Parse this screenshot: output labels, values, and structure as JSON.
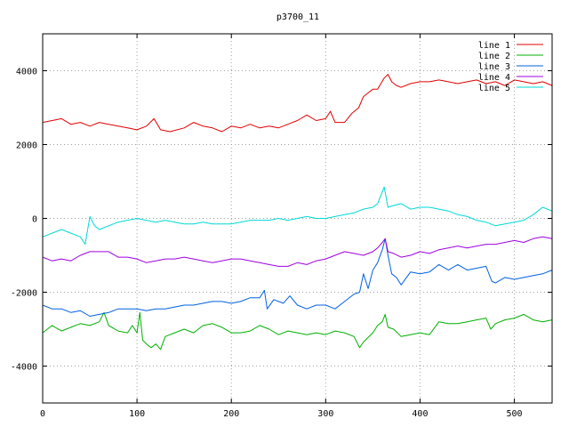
{
  "chart_data": {
    "type": "line",
    "title": "p3700_11",
    "xlabel": "",
    "ylabel": "",
    "xlim": [
      0,
      540
    ],
    "ylim": [
      -5000,
      5000
    ],
    "xticks": [
      0,
      100,
      200,
      300,
      400,
      500
    ],
    "yticks": [
      -4000,
      -2000,
      0,
      2000,
      4000
    ],
    "grid": true,
    "legend_position": "top-right",
    "series": [
      {
        "name": "line 1",
        "color": "#e00000",
        "points": [
          [
            0,
            2600
          ],
          [
            10,
            2650
          ],
          [
            20,
            2700
          ],
          [
            30,
            2550
          ],
          [
            40,
            2600
          ],
          [
            50,
            2500
          ],
          [
            60,
            2600
          ],
          [
            70,
            2550
          ],
          [
            80,
            2500
          ],
          [
            90,
            2450
          ],
          [
            100,
            2400
          ],
          [
            110,
            2500
          ],
          [
            118,
            2700
          ],
          [
            125,
            2400
          ],
          [
            135,
            2350
          ],
          [
            150,
            2450
          ],
          [
            160,
            2600
          ],
          [
            170,
            2500
          ],
          [
            180,
            2450
          ],
          [
            190,
            2350
          ],
          [
            200,
            2500
          ],
          [
            210,
            2450
          ],
          [
            220,
            2550
          ],
          [
            230,
            2450
          ],
          [
            240,
            2500
          ],
          [
            250,
            2450
          ],
          [
            260,
            2550
          ],
          [
            270,
            2650
          ],
          [
            280,
            2800
          ],
          [
            290,
            2650
          ],
          [
            300,
            2700
          ],
          [
            305,
            2900
          ],
          [
            310,
            2600
          ],
          [
            320,
            2600
          ],
          [
            328,
            2850
          ],
          [
            335,
            3000
          ],
          [
            340,
            3300
          ],
          [
            345,
            3400
          ],
          [
            350,
            3500
          ],
          [
            355,
            3500
          ],
          [
            362,
            3800
          ],
          [
            366,
            3900
          ],
          [
            370,
            3700
          ],
          [
            375,
            3600
          ],
          [
            380,
            3550
          ],
          [
            390,
            3650
          ],
          [
            400,
            3700
          ],
          [
            410,
            3700
          ],
          [
            420,
            3750
          ],
          [
            430,
            3700
          ],
          [
            440,
            3650
          ],
          [
            450,
            3700
          ],
          [
            460,
            3750
          ],
          [
            470,
            3650
          ],
          [
            480,
            3700
          ],
          [
            490,
            3600
          ],
          [
            500,
            3750
          ],
          [
            510,
            3700
          ],
          [
            520,
            3650
          ],
          [
            530,
            3700
          ],
          [
            540,
            3600
          ]
        ]
      },
      {
        "name": "line 2",
        "color": "#00b000",
        "points": [
          [
            0,
            -3100
          ],
          [
            10,
            -2900
          ],
          [
            20,
            -3050
          ],
          [
            30,
            -2950
          ],
          [
            40,
            -2850
          ],
          [
            50,
            -2900
          ],
          [
            60,
            -2800
          ],
          [
            65,
            -2550
          ],
          [
            70,
            -2900
          ],
          [
            80,
            -3050
          ],
          [
            90,
            -3100
          ],
          [
            95,
            -2900
          ],
          [
            100,
            -3100
          ],
          [
            103,
            -2550
          ],
          [
            106,
            -3300
          ],
          [
            110,
            -3400
          ],
          [
            115,
            -3500
          ],
          [
            120,
            -3400
          ],
          [
            125,
            -3550
          ],
          [
            130,
            -3200
          ],
          [
            140,
            -3100
          ],
          [
            150,
            -3000
          ],
          [
            160,
            -3100
          ],
          [
            170,
            -2900
          ],
          [
            180,
            -2850
          ],
          [
            190,
            -2950
          ],
          [
            200,
            -3100
          ],
          [
            210,
            -3100
          ],
          [
            220,
            -3050
          ],
          [
            230,
            -2900
          ],
          [
            240,
            -3000
          ],
          [
            250,
            -3150
          ],
          [
            260,
            -3050
          ],
          [
            270,
            -3100
          ],
          [
            280,
            -3150
          ],
          [
            290,
            -3100
          ],
          [
            300,
            -3150
          ],
          [
            310,
            -3050
          ],
          [
            320,
            -3100
          ],
          [
            330,
            -3200
          ],
          [
            336,
            -3500
          ],
          [
            340,
            -3350
          ],
          [
            350,
            -3100
          ],
          [
            355,
            -2900
          ],
          [
            360,
            -2800
          ],
          [
            363,
            -2600
          ],
          [
            366,
            -2950
          ],
          [
            372,
            -3000
          ],
          [
            380,
            -3200
          ],
          [
            390,
            -3150
          ],
          [
            400,
            -3100
          ],
          [
            410,
            -3150
          ],
          [
            420,
            -2800
          ],
          [
            430,
            -2850
          ],
          [
            440,
            -2850
          ],
          [
            450,
            -2800
          ],
          [
            460,
            -2750
          ],
          [
            470,
            -2700
          ],
          [
            475,
            -3000
          ],
          [
            480,
            -2850
          ],
          [
            490,
            -2750
          ],
          [
            500,
            -2700
          ],
          [
            510,
            -2600
          ],
          [
            520,
            -2750
          ],
          [
            530,
            -2800
          ],
          [
            540,
            -2750
          ]
        ]
      },
      {
        "name": "line 3",
        "color": "#0060e0",
        "points": [
          [
            0,
            -2350
          ],
          [
            10,
            -2450
          ],
          [
            20,
            -2450
          ],
          [
            30,
            -2550
          ],
          [
            40,
            -2500
          ],
          [
            50,
            -2650
          ],
          [
            60,
            -2600
          ],
          [
            70,
            -2550
          ],
          [
            80,
            -2450
          ],
          [
            90,
            -2450
          ],
          [
            100,
            -2450
          ],
          [
            110,
            -2500
          ],
          [
            120,
            -2450
          ],
          [
            130,
            -2450
          ],
          [
            140,
            -2400
          ],
          [
            150,
            -2350
          ],
          [
            160,
            -2350
          ],
          [
            170,
            -2300
          ],
          [
            180,
            -2250
          ],
          [
            190,
            -2250
          ],
          [
            200,
            -2300
          ],
          [
            210,
            -2250
          ],
          [
            220,
            -2150
          ],
          [
            230,
            -2150
          ],
          [
            235,
            -1950
          ],
          [
            238,
            -2450
          ],
          [
            245,
            -2200
          ],
          [
            255,
            -2300
          ],
          [
            262,
            -2100
          ],
          [
            270,
            -2350
          ],
          [
            280,
            -2450
          ],
          [
            290,
            -2350
          ],
          [
            300,
            -2350
          ],
          [
            310,
            -2450
          ],
          [
            320,
            -2250
          ],
          [
            330,
            -2050
          ],
          [
            336,
            -2000
          ],
          [
            340,
            -1500
          ],
          [
            345,
            -1900
          ],
          [
            350,
            -1400
          ],
          [
            355,
            -1200
          ],
          [
            360,
            -850
          ],
          [
            363,
            -550
          ],
          [
            366,
            -1000
          ],
          [
            370,
            -1500
          ],
          [
            375,
            -1600
          ],
          [
            380,
            -1800
          ],
          [
            390,
            -1450
          ],
          [
            400,
            -1500
          ],
          [
            410,
            -1450
          ],
          [
            420,
            -1250
          ],
          [
            430,
            -1400
          ],
          [
            440,
            -1250
          ],
          [
            450,
            -1400
          ],
          [
            460,
            -1350
          ],
          [
            470,
            -1300
          ],
          [
            476,
            -1700
          ],
          [
            480,
            -1750
          ],
          [
            490,
            -1600
          ],
          [
            500,
            -1650
          ],
          [
            510,
            -1600
          ],
          [
            520,
            -1550
          ],
          [
            530,
            -1500
          ],
          [
            540,
            -1400
          ]
        ]
      },
      {
        "name": "line 4",
        "color": "#a000e0",
        "points": [
          [
            0,
            -1050
          ],
          [
            10,
            -1150
          ],
          [
            20,
            -1100
          ],
          [
            30,
            -1150
          ],
          [
            40,
            -1000
          ],
          [
            50,
            -900
          ],
          [
            60,
            -900
          ],
          [
            70,
            -900
          ],
          [
            80,
            -1050
          ],
          [
            90,
            -1050
          ],
          [
            100,
            -1100
          ],
          [
            110,
            -1200
          ],
          [
            120,
            -1150
          ],
          [
            130,
            -1100
          ],
          [
            140,
            -1100
          ],
          [
            150,
            -1050
          ],
          [
            160,
            -1100
          ],
          [
            170,
            -1150
          ],
          [
            180,
            -1200
          ],
          [
            190,
            -1150
          ],
          [
            200,
            -1100
          ],
          [
            210,
            -1100
          ],
          [
            220,
            -1150
          ],
          [
            230,
            -1200
          ],
          [
            240,
            -1250
          ],
          [
            250,
            -1300
          ],
          [
            260,
            -1300
          ],
          [
            270,
            -1200
          ],
          [
            280,
            -1250
          ],
          [
            290,
            -1150
          ],
          [
            300,
            -1100
          ],
          [
            310,
            -1000
          ],
          [
            320,
            -900
          ],
          [
            330,
            -950
          ],
          [
            340,
            -1000
          ],
          [
            350,
            -900
          ],
          [
            355,
            -800
          ],
          [
            360,
            -650
          ],
          [
            363,
            -550
          ],
          [
            366,
            -900
          ],
          [
            372,
            -950
          ],
          [
            380,
            -1050
          ],
          [
            390,
            -1000
          ],
          [
            400,
            -900
          ],
          [
            410,
            -950
          ],
          [
            420,
            -850
          ],
          [
            430,
            -800
          ],
          [
            440,
            -750
          ],
          [
            450,
            -800
          ],
          [
            460,
            -750
          ],
          [
            470,
            -700
          ],
          [
            480,
            -700
          ],
          [
            490,
            -650
          ],
          [
            500,
            -600
          ],
          [
            510,
            -650
          ],
          [
            520,
            -550
          ],
          [
            530,
            -500
          ],
          [
            540,
            -550
          ]
        ]
      },
      {
        "name": "line 5",
        "color": "#00d8d8",
        "points": [
          [
            0,
            -500
          ],
          [
            10,
            -400
          ],
          [
            20,
            -300
          ],
          [
            30,
            -400
          ],
          [
            40,
            -500
          ],
          [
            45,
            -700
          ],
          [
            50,
            50
          ],
          [
            55,
            -200
          ],
          [
            60,
            -300
          ],
          [
            70,
            -200
          ],
          [
            80,
            -100
          ],
          [
            90,
            -50
          ],
          [
            100,
            0
          ],
          [
            110,
            -50
          ],
          [
            120,
            -100
          ],
          [
            130,
            -50
          ],
          [
            140,
            -100
          ],
          [
            150,
            -150
          ],
          [
            160,
            -150
          ],
          [
            170,
            -100
          ],
          [
            180,
            -150
          ],
          [
            190,
            -150
          ],
          [
            200,
            -150
          ],
          [
            210,
            -100
          ],
          [
            220,
            -50
          ],
          [
            230,
            -50
          ],
          [
            240,
            -50
          ],
          [
            250,
            0
          ],
          [
            260,
            -50
          ],
          [
            270,
            0
          ],
          [
            280,
            50
          ],
          [
            290,
            0
          ],
          [
            300,
            0
          ],
          [
            310,
            50
          ],
          [
            320,
            100
          ],
          [
            330,
            150
          ],
          [
            340,
            250
          ],
          [
            350,
            300
          ],
          [
            355,
            400
          ],
          [
            362,
            850
          ],
          [
            366,
            300
          ],
          [
            372,
            350
          ],
          [
            380,
            400
          ],
          [
            390,
            250
          ],
          [
            400,
            300
          ],
          [
            410,
            300
          ],
          [
            420,
            250
          ],
          [
            430,
            200
          ],
          [
            440,
            100
          ],
          [
            450,
            50
          ],
          [
            460,
            -50
          ],
          [
            470,
            -100
          ],
          [
            480,
            -200
          ],
          [
            490,
            -150
          ],
          [
            500,
            -100
          ],
          [
            510,
            -50
          ],
          [
            520,
            100
          ],
          [
            530,
            300
          ],
          [
            540,
            200
          ]
        ]
      }
    ]
  }
}
